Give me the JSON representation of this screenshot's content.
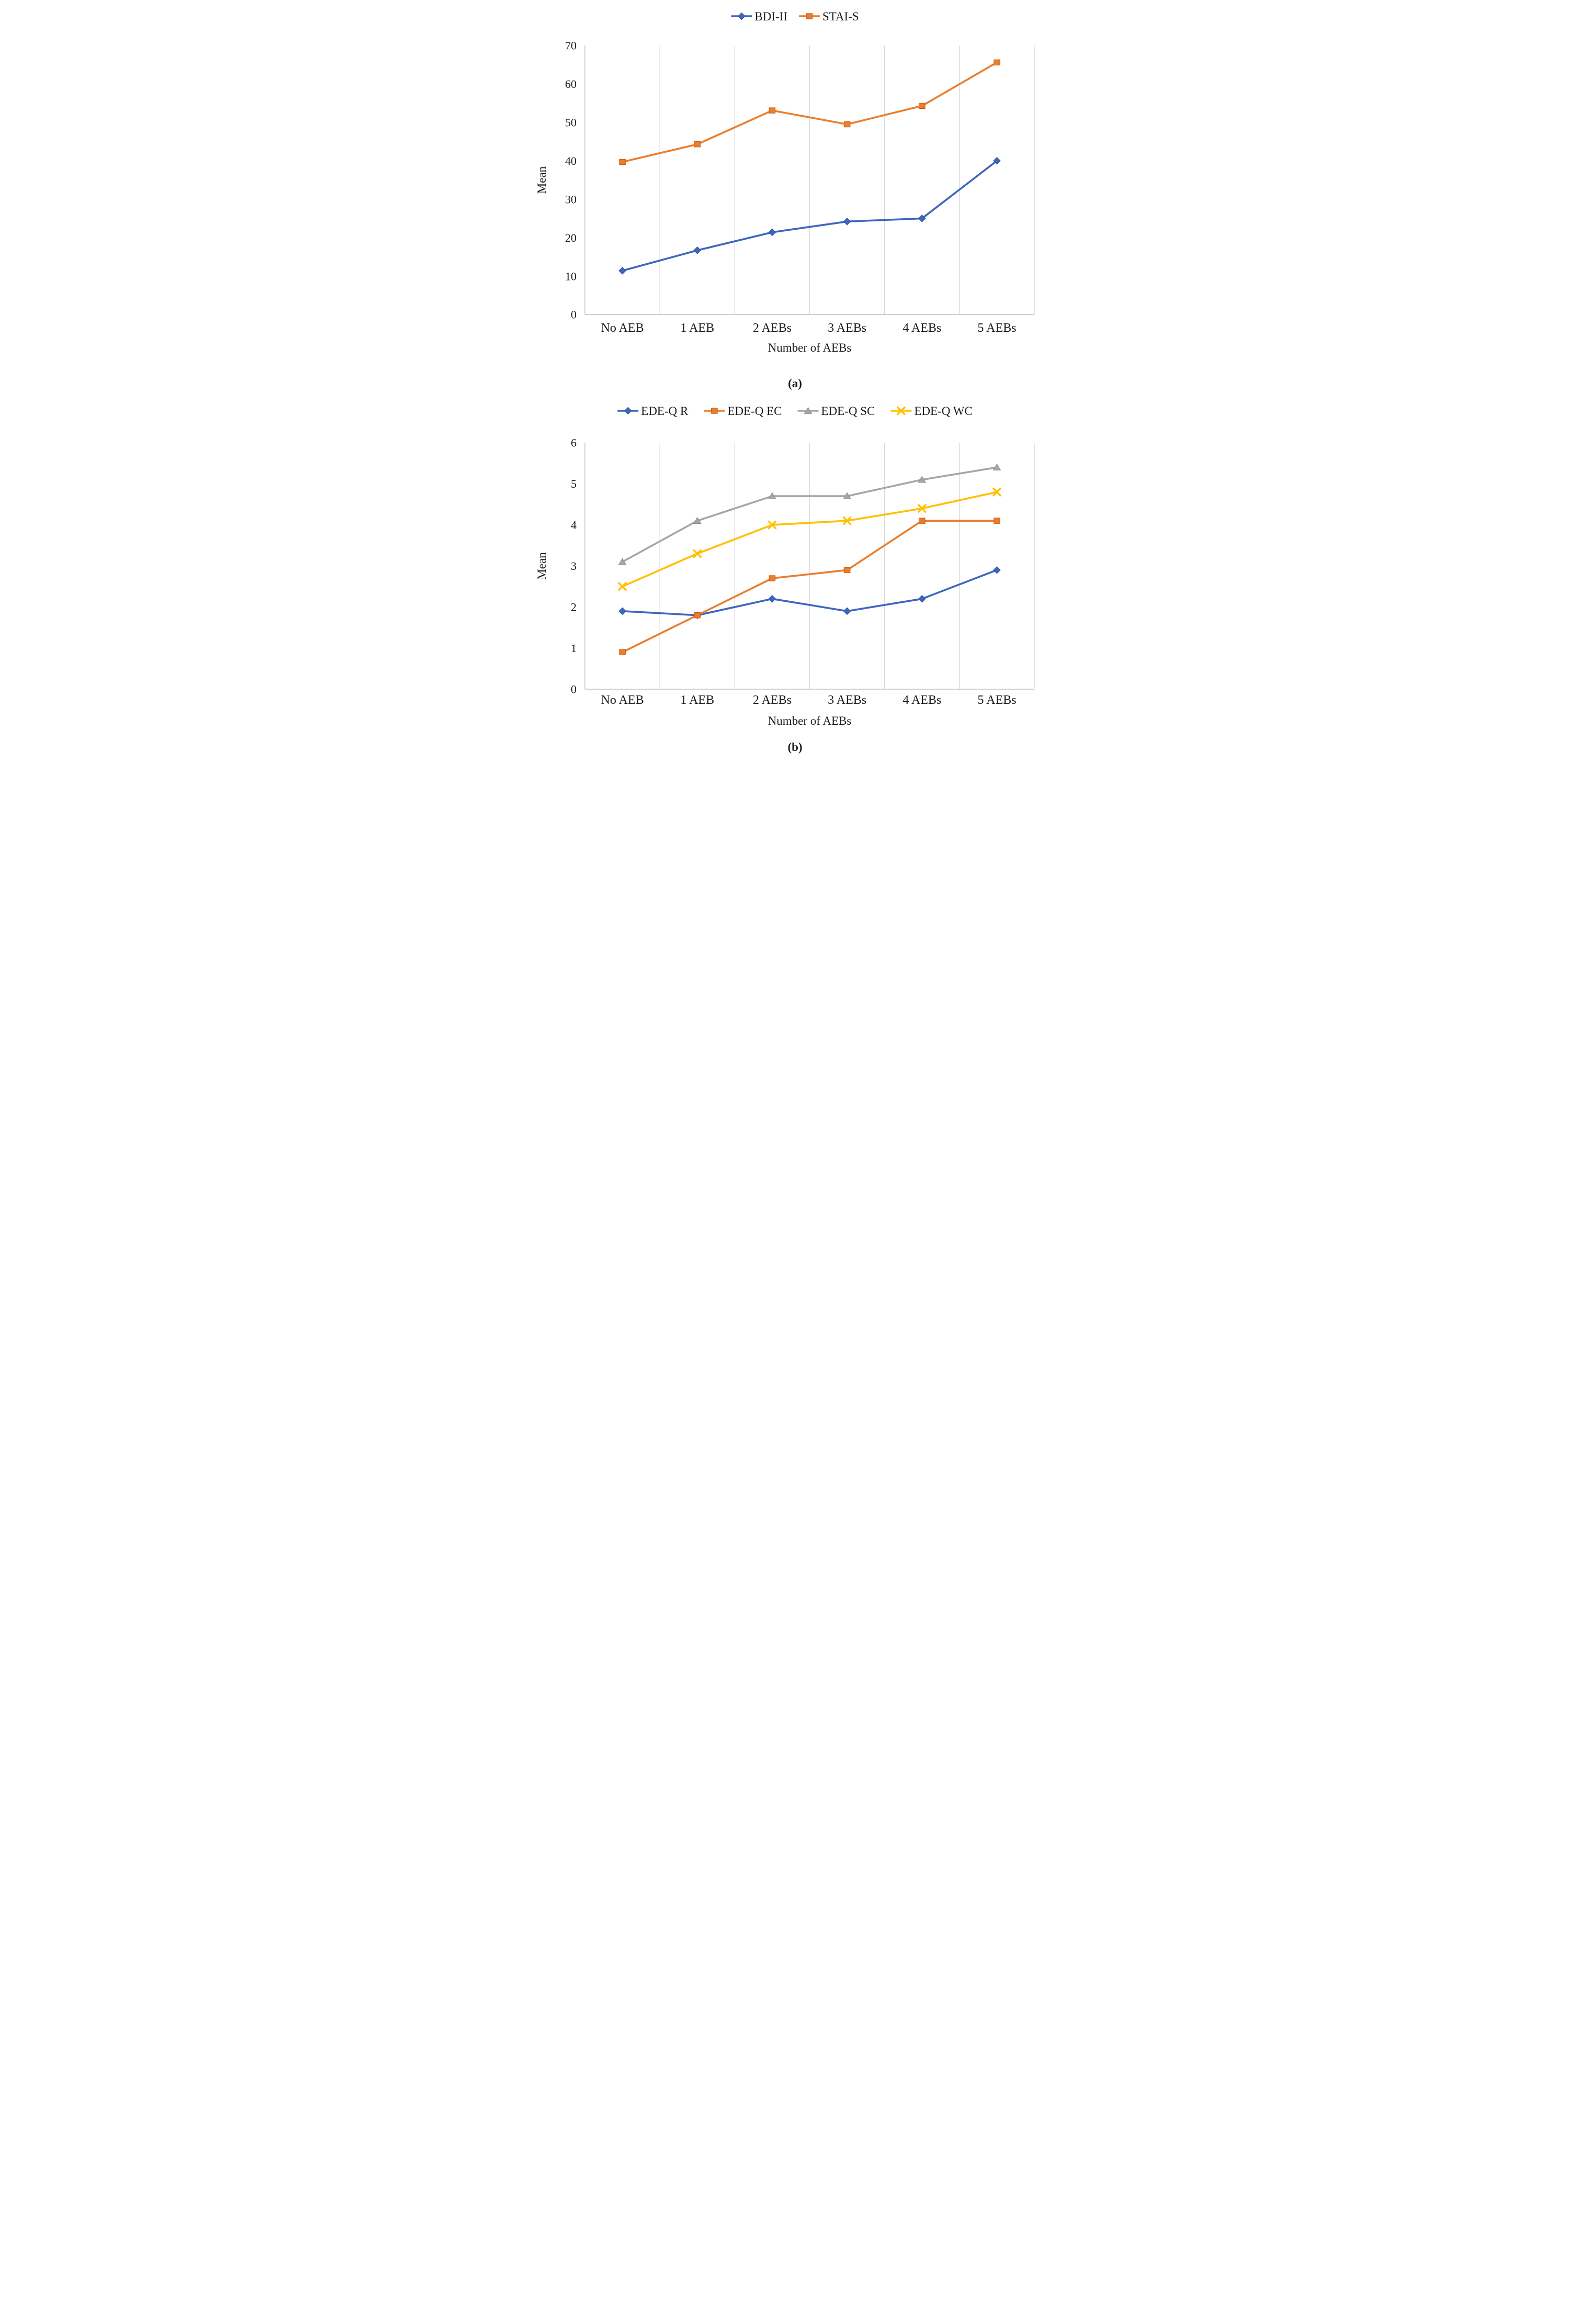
{
  "figure": {
    "ylabel": "Mean",
    "xlabel": "Number of AEBs"
  },
  "colors": {
    "blue": "#3e66be",
    "blue_edge": "#2f5597",
    "orange": "#e97e2e",
    "orange_edge": "#c55a11",
    "gray": "#a6a6a6",
    "gray_edge": "#8c8c8c",
    "gold": "#ffc000",
    "gold_edge": "#d9a300",
    "gridline": "#d6d6d6",
    "axis_line": "#c0c0c0",
    "text": "#1c1c1c"
  },
  "chart_data": [
    {
      "id": "a",
      "type": "line",
      "panel_label": "(a)",
      "xlabel": "Number of AEBs",
      "ylabel": "Mean",
      "categories": [
        "No AEB",
        "1 AEB",
        "2 AEBs",
        "3 AEBs",
        "4 AEBs",
        "5 AEBs"
      ],
      "ylim": [
        0,
        70
      ],
      "ytick_step": 10,
      "yticks": [
        0,
        10,
        20,
        30,
        40,
        50,
        60,
        70
      ],
      "grid": "vertical-only",
      "legend_position": "top",
      "series": [
        {
          "name": "BDI-II",
          "marker": "diamond",
          "color": "#3e66be",
          "edge": "#2f5597",
          "values": [
            11.4,
            16.7,
            21.4,
            24.2,
            25.0,
            40.0
          ]
        },
        {
          "name": "STAI-S",
          "marker": "square",
          "color": "#e97e2e",
          "edge": "#c55a11",
          "values": [
            39.7,
            44.3,
            53.1,
            49.5,
            54.3,
            65.6
          ]
        }
      ]
    },
    {
      "id": "b",
      "type": "line",
      "panel_label": "(b)",
      "xlabel": "Number of AEBs",
      "ylabel": "Mean",
      "categories": [
        "No AEB",
        "1 AEB",
        "2 AEBs",
        "3 AEBs",
        "4 AEBs",
        "5 AEBs"
      ],
      "ylim": [
        0,
        6
      ],
      "ytick_step": 1,
      "yticks": [
        0,
        1,
        2,
        3,
        4,
        5,
        6
      ],
      "grid": "vertical-only",
      "legend_position": "top",
      "series": [
        {
          "name": "EDE-Q R",
          "marker": "diamond",
          "color": "#3e66be",
          "edge": "#2f5597",
          "values": [
            1.9,
            1.8,
            2.2,
            1.9,
            2.2,
            2.9
          ]
        },
        {
          "name": "EDE-Q EC",
          "marker": "square",
          "color": "#e97e2e",
          "edge": "#c55a11",
          "values": [
            0.9,
            1.8,
            2.7,
            2.9,
            4.1,
            4.1
          ]
        },
        {
          "name": "EDE-Q SC",
          "marker": "triangle",
          "color": "#a6a6a6",
          "edge": "#8c8c8c",
          "values": [
            3.1,
            4.1,
            4.7,
            4.7,
            5.1,
            5.4
          ]
        },
        {
          "name": "EDE-Q WC",
          "marker": "x",
          "color": "#ffc000",
          "edge": "#d9a300",
          "values": [
            2.5,
            3.3,
            4.0,
            4.1,
            4.4,
            4.8
          ]
        }
      ]
    }
  ]
}
